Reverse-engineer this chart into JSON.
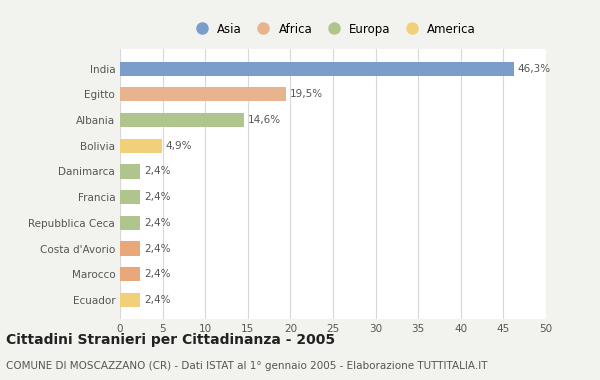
{
  "categories": [
    "India",
    "Egitto",
    "Albania",
    "Bolivia",
    "Danimarca",
    "Francia",
    "Repubblica Ceca",
    "Costa d'Avorio",
    "Marocco",
    "Ecuador"
  ],
  "values": [
    46.3,
    19.5,
    14.6,
    4.9,
    2.4,
    2.4,
    2.4,
    2.4,
    2.4,
    2.4
  ],
  "labels": [
    "46,3%",
    "19,5%",
    "14,6%",
    "4,9%",
    "2,4%",
    "2,4%",
    "2,4%",
    "2,4%",
    "2,4%",
    "2,4%"
  ],
  "colors": [
    "#7b9dc9",
    "#e8b48e",
    "#b0c48e",
    "#f2d07a",
    "#b0c48e",
    "#b0c48e",
    "#b0c48e",
    "#e8a87a",
    "#e8a87a",
    "#f2d07a"
  ],
  "continent_labels": [
    "Asia",
    "Africa",
    "Europa",
    "America"
  ],
  "continent_colors": [
    "#7b9dc9",
    "#e8b48e",
    "#b0c48e",
    "#f2d07a"
  ],
  "title": "Cittadini Stranieri per Cittadinanza - 2005",
  "subtitle": "COMUNE DI MOSCAZZANO (CR) - Dati ISTAT al 1° gennaio 2005 - Elaborazione TUTTITALIA.IT",
  "xlim": [
    0,
    50
  ],
  "xticks": [
    0,
    5,
    10,
    15,
    20,
    25,
    30,
    35,
    40,
    45,
    50
  ],
  "background_color": "#f2f2ee",
  "bar_background": "#ffffff",
  "grid_color": "#d8d8d8",
  "title_fontsize": 10,
  "subtitle_fontsize": 7.5,
  "label_fontsize": 7.5,
  "tick_fontsize": 7.5,
  "legend_fontsize": 8.5
}
